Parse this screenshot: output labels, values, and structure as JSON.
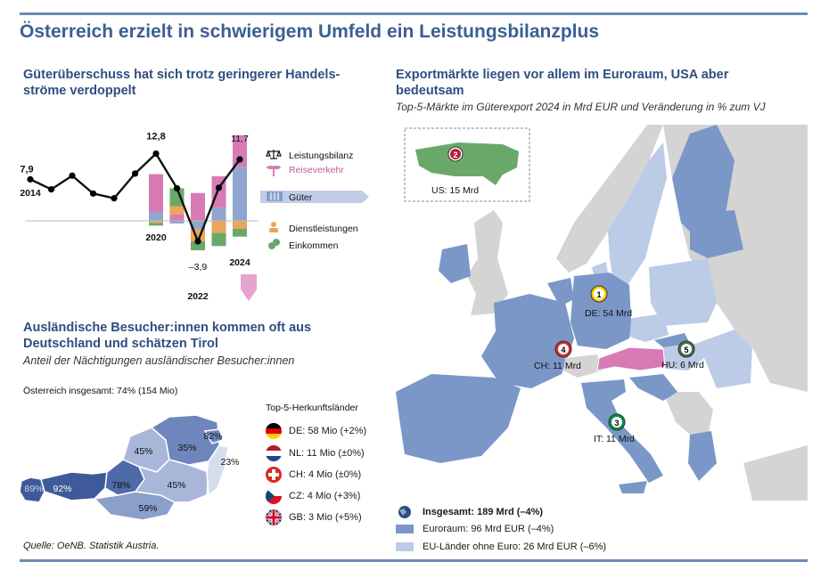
{
  "title": "Österreich erzielt in schwierigem Umfeld ein Leistungsbilanzplus",
  "left_top": {
    "heading_line1": "Güterüberschuss hat sich trotz geringerer Handels-",
    "heading_line2": "ströme verdoppelt"
  },
  "right": {
    "heading_line1": "Exportmärkte liegen vor allem im Euroraum, USA aber",
    "heading_line2": "bedeutsam",
    "subtitle": "Top-5-Märkte im Güterexport 2024 in Mrd EUR und Veränderung in % zum VJ"
  },
  "left_bottom": {
    "heading_line1": "Ausländische Besucher:innen kommen oft aus",
    "heading_line2": "Deutschland und schätzen Tirol",
    "subtitle": "Anteil der Nächtigungen ausländischer Besucher:innen",
    "total": "Österreich insgesamt: 74% (154 Mio)",
    "countries_title": "Top-5-Herkunftsländer",
    "countries": [
      {
        "code": "DE",
        "label": "DE: 58 Mio (+2%)"
      },
      {
        "code": "NL",
        "label": "NL: 11 Mio (±0%)"
      },
      {
        "code": "CH",
        "label": "CH: 4 Mio (±0%)"
      },
      {
        "code": "CZ",
        "label": "CZ: 4 Mio (+3%)"
      },
      {
        "code": "GB",
        "label": "GB: 3 Mio (+5%)"
      }
    ]
  },
  "source": "Quelle: OeNB. Statistik Austria.",
  "colors": {
    "title": "#3c5f93",
    "rule": "#6a8bb5",
    "goods": "#8fa6cf",
    "travel": "#d87bb5",
    "services": "#eca55a",
    "income": "#6aa86a",
    "balance": "#000000",
    "euro_area": "#7b97c8",
    "eu_non_euro": "#bccbe6",
    "other": "#d4d4d4",
    "austria": "#d87bb5"
  },
  "chart_data": [
    {
      "type": "bar",
      "subtype": "stacked bar with line",
      "x": [
        2014,
        2015,
        2016,
        2017,
        2018,
        2019,
        2020,
        2021,
        2022,
        2023,
        2024
      ],
      "x_tick_labels": [
        "2014",
        "2020",
        "2022",
        "2024"
      ],
      "balance_labels": {
        "2014": "7,9",
        "2020": "12,8",
        "2022": "–3,9",
        "2024": "11,7"
      },
      "legend": [
        "Leistungsbilanz",
        "Reiseverkehr",
        "Güter",
        "Dienstleistungen",
        "Einkommen"
      ],
      "series": [
        {
          "name": "Leistungsbilanz",
          "type": "line",
          "values": [
            7.9,
            6.0,
            8.6,
            5.2,
            4.3,
            9.0,
            12.8,
            6.2,
            -3.9,
            6.3,
            11.7
          ]
        },
        {
          "name": "Güter",
          "values": [
            null,
            null,
            null,
            null,
            null,
            null,
            1.7,
            -0.5,
            -1.6,
            2.5,
            10.3
          ]
        },
        {
          "name": "Reiseverkehr",
          "values": [
            null,
            null,
            null,
            null,
            null,
            null,
            7.2,
            1.2,
            5.3,
            6.0,
            6.0
          ]
        },
        {
          "name": "Dienstleistungen",
          "values": [
            null,
            null,
            null,
            null,
            null,
            null,
            -0.4,
            1.6,
            -2.3,
            -2.3,
            -1.5
          ]
        },
        {
          "name": "Einkommen",
          "values": [
            null,
            null,
            null,
            null,
            null,
            null,
            -0.5,
            3.4,
            -1.7,
            -2.5,
            -1.5
          ]
        }
      ]
    },
    {
      "type": "table",
      "title": "Top-5-Märkte im Güterexport 2024 in Mrd EUR und Veränderung in % zum VJ",
      "markets": [
        {
          "rank": 1,
          "label": "DE: 54 Mrd"
        },
        {
          "rank": 2,
          "label": "US: 15 Mrd"
        },
        {
          "rank": 3,
          "label": "IT: 11 Mrd"
        },
        {
          "rank": 4,
          "label": "CH: 11 Mrd"
        },
        {
          "rank": 5,
          "label": "HU: 6 Mrd"
        }
      ],
      "legend": [
        {
          "key": "total",
          "label": "Insgesamt: 189 Mrd (–4%)"
        },
        {
          "key": "euro_area",
          "label": "Euroraum: 96 Mrd EUR (–4%)"
        },
        {
          "key": "eu_non_euro",
          "label": "EU-Länder ohne Euro: 26 Mrd EUR (–6%)"
        }
      ]
    },
    {
      "type": "heatmap",
      "title": "Anteil der Nächtigungen ausländischer Besucher:innen",
      "regions": [
        {
          "name": "Vorarlberg",
          "value": 89
        },
        {
          "name": "Tirol",
          "value": 92
        },
        {
          "name": "Salzburg",
          "value": 78
        },
        {
          "name": "Kärnten",
          "value": 59
        },
        {
          "name": "Oberösterreich",
          "value": 45
        },
        {
          "name": "Steiermark",
          "value": 45
        },
        {
          "name": "Niederösterreich",
          "value": 35
        },
        {
          "name": "Wien",
          "value": 82
        },
        {
          "name": "Burgenland",
          "value": 23
        }
      ]
    }
  ]
}
